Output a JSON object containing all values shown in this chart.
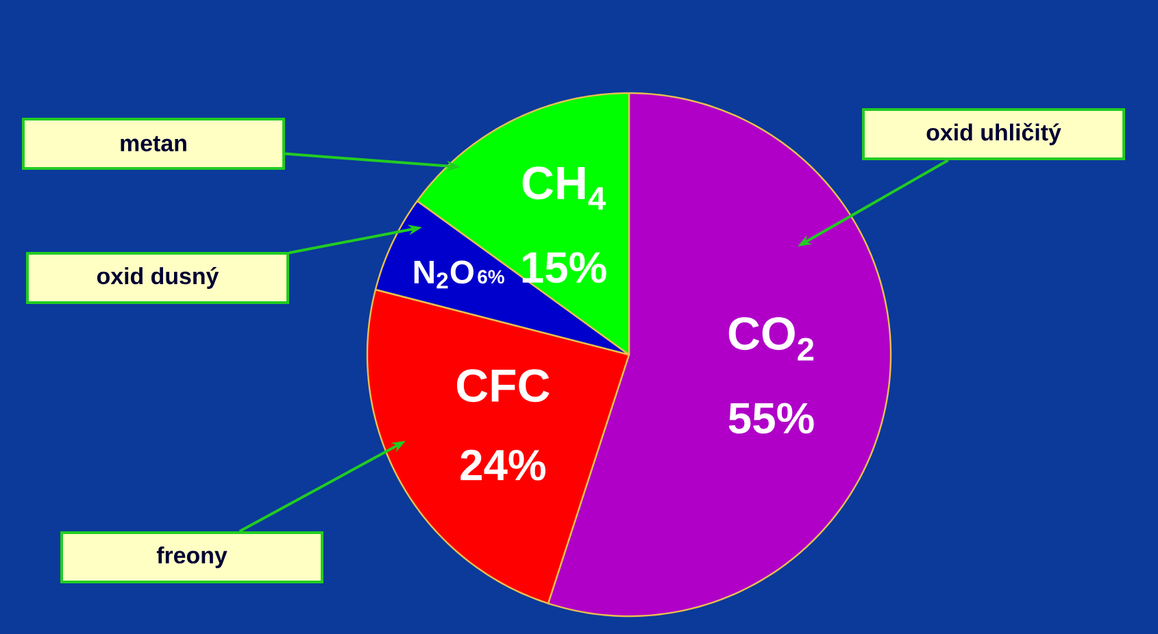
{
  "chart_data": {
    "type": "pie",
    "categories": [
      "CO$_{2}$",
      "CFC",
      "N$_{2}$O",
      "CH$_{4}$"
    ],
    "values": [
      55,
      24,
      6,
      15
    ],
    "value_labels": [
      "55%",
      "24%",
      "6%",
      "15%"
    ],
    "colors": [
      "#b000c8",
      "#ff0000",
      "#0000cc",
      "#00ff00"
    ],
    "annotations": [
      "oxid uhličitý",
      "freony",
      "oxid dusný",
      "metan"
    ]
  }
}
